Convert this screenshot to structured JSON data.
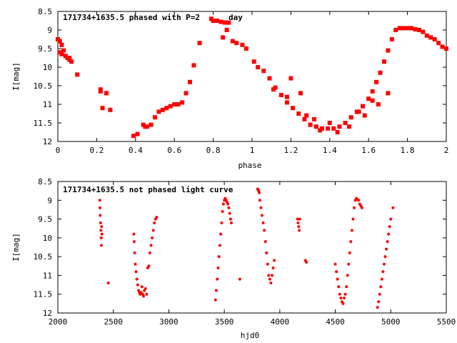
{
  "chart_data": [
    {
      "type": "scatter",
      "title": "171734+1635.5 phased with P=2",
      "title_obscured_tail": "day",
      "xlabel": "phase",
      "ylabel": "I[mag]",
      "xlim": [
        0,
        2
      ],
      "ylim": [
        8.5,
        12
      ],
      "y_inverted": true,
      "xticks": [
        "0",
        "0.2",
        "0.4",
        "0.6",
        "0.8",
        "1",
        "1.2",
        "1.4",
        "1.6",
        "1.8",
        "2"
      ],
      "yticks": [
        "8.5",
        "9",
        "9.5",
        "10",
        "10.5",
        "11",
        "11.5",
        "12"
      ],
      "marker": "filled-square",
      "color": "#ff0000",
      "series": [
        {
          "x": [
            0.0,
            0.01,
            0.02,
            0.03,
            0.04,
            0.05,
            0.06,
            0.07,
            0.01,
            0.02,
            0.04,
            0.06,
            0.1,
            0.22,
            0.23,
            0.25,
            0.22,
            0.27,
            0.39,
            0.41,
            0.44,
            0.45,
            0.46,
            0.48,
            0.5,
            0.52,
            0.54,
            0.56,
            0.58,
            0.6,
            0.62,
            0.64,
            0.66,
            0.68,
            0.7,
            0.73,
            0.79,
            0.8,
            0.82,
            0.84,
            0.86,
            0.88,
            0.85,
            0.87,
            0.9,
            0.92,
            0.95,
            0.97,
            1.01,
            1.03,
            1.06,
            1.09,
            1.12,
            1.15,
            1.18,
            1.21,
            1.24,
            1.27,
            1.3,
            1.33,
            1.36,
            1.39,
            1.42,
            1.45,
            1.48,
            1.51,
            1.54,
            1.57,
            1.6,
            1.62,
            1.64,
            1.66,
            1.68,
            1.7,
            1.72,
            1.74,
            1.76,
            1.78,
            1.8,
            1.82,
            1.84,
            1.86,
            1.88,
            1.9,
            1.92,
            1.94,
            1.96,
            1.98,
            2.0,
            1.2,
            1.25,
            1.35,
            1.4,
            1.5,
            1.55,
            1.62,
            1.65,
            1.11,
            1.18,
            1.28,
            1.32,
            1.44,
            1.58,
            1.7
          ],
          "y": [
            9.25,
            9.3,
            9.4,
            9.55,
            9.7,
            9.75,
            9.8,
            9.85,
            9.6,
            9.65,
            9.7,
            9.75,
            10.2,
            10.6,
            11.1,
            10.7,
            10.65,
            11.15,
            11.85,
            11.8,
            11.55,
            11.6,
            11.6,
            11.55,
            11.35,
            11.2,
            11.15,
            11.1,
            11.05,
            11.0,
            11.0,
            10.95,
            10.7,
            10.4,
            9.95,
            9.35,
            8.7,
            8.75,
            8.75,
            8.78,
            8.8,
            8.8,
            9.2,
            9.0,
            9.3,
            9.35,
            9.4,
            9.5,
            9.85,
            10.0,
            10.1,
            10.3,
            10.55,
            10.75,
            10.95,
            11.1,
            11.25,
            11.4,
            11.55,
            11.6,
            11.65,
            11.65,
            11.65,
            11.6,
            11.5,
            11.35,
            11.2,
            11.05,
            10.85,
            10.65,
            10.4,
            10.15,
            9.85,
            9.55,
            9.25,
            9.0,
            8.95,
            8.95,
            8.95,
            8.95,
            8.98,
            9.0,
            9.05,
            9.15,
            9.2,
            9.25,
            9.35,
            9.45,
            9.5,
            10.3,
            10.7,
            11.7,
            11.5,
            11.6,
            11.2,
            10.9,
            11.0,
            10.6,
            10.8,
            11.3,
            11.4,
            11.75,
            11.3,
            10.7
          ]
        }
      ]
    },
    {
      "type": "scatter",
      "title": "171734+1635.5 not phased light curve",
      "xlabel": "hjd0",
      "ylabel": "I[mag]",
      "xlim": [
        2000,
        5500
      ],
      "ylim": [
        8.5,
        12
      ],
      "y_inverted": true,
      "xticks": [
        "2000",
        "2500",
        "3000",
        "3500",
        "4000",
        "4500",
        "5000",
        "5500"
      ],
      "yticks": [
        "8.5",
        "9",
        "9.5",
        "10",
        "10.5",
        "11",
        "11.5",
        "12"
      ],
      "marker": "filled-circle",
      "color": "#ff0000",
      "series": [
        {
          "x": [
            2378,
            2380,
            2382,
            2385,
            2388,
            2390,
            2392,
            2395,
            2398,
            2455,
            2685,
            2688,
            2692,
            2698,
            2705,
            2712,
            2720,
            2728,
            2735,
            2742,
            2750,
            2758,
            2765,
            2772,
            2780,
            2790,
            2800,
            2810,
            2820,
            2830,
            2840,
            2850,
            2860,
            2870,
            2880,
            2890,
            3420,
            3428,
            3436,
            3444,
            3452,
            3460,
            3468,
            3476,
            3484,
            3492,
            3500,
            3508,
            3516,
            3524,
            3532,
            3540,
            3548,
            3556,
            3564,
            3640,
            3800,
            3805,
            3810,
            3815,
            3820,
            3830,
            3840,
            3850,
            3860,
            3870,
            3880,
            3890,
            3900,
            3910,
            3920,
            3930,
            3940,
            3950,
            4160,
            4165,
            4170,
            4175,
            4180,
            4230,
            4240,
            4500,
            4510,
            4520,
            4530,
            4540,
            4550,
            4560,
            4570,
            4580,
            4590,
            4600,
            4610,
            4620,
            4630,
            4640,
            4650,
            4660,
            4670,
            4680,
            4690,
            4700,
            4710,
            4720,
            4730,
            4740,
            4880,
            4890,
            4900,
            4910,
            4920,
            4930,
            4940,
            4950,
            4960,
            4970,
            4980,
            4990,
            5000,
            5020
          ],
          "y": [
            9.0,
            9.2,
            9.4,
            9.6,
            9.8,
            10.0,
            10.2,
            9.7,
            9.9,
            11.2,
            9.9,
            10.1,
            10.4,
            10.7,
            10.9,
            11.1,
            11.25,
            11.4,
            11.45,
            11.5,
            11.45,
            11.3,
            11.5,
            11.55,
            11.4,
            11.35,
            11.5,
            10.8,
            10.75,
            10.4,
            10.2,
            10.0,
            9.8,
            9.6,
            9.5,
            9.45,
            11.65,
            11.4,
            11.1,
            10.8,
            10.5,
            10.2,
            9.9,
            9.6,
            9.3,
            9.1,
            9.0,
            8.95,
            9.0,
            9.05,
            9.1,
            9.2,
            9.35,
            9.5,
            9.6,
            11.1,
            8.7,
            8.72,
            8.75,
            8.8,
            9.0,
            9.2,
            9.4,
            9.6,
            9.8,
            10.1,
            10.4,
            10.7,
            11.0,
            11.1,
            11.2,
            11.0,
            10.8,
            10.6,
            9.5,
            9.6,
            9.7,
            9.8,
            9.5,
            10.6,
            10.65,
            10.7,
            10.9,
            11.1,
            11.3,
            11.5,
            11.6,
            11.7,
            11.75,
            11.6,
            11.5,
            11.3,
            11.0,
            10.7,
            10.4,
            10.1,
            9.8,
            9.5,
            9.2,
            9.0,
            8.95,
            8.98,
            9.0,
            9.1,
            9.15,
            9.2,
            11.85,
            11.7,
            11.5,
            11.3,
            11.1,
            10.9,
            10.7,
            10.5,
            10.3,
            10.1,
            9.9,
            9.7,
            9.5,
            9.2
          ]
        }
      ]
    }
  ]
}
